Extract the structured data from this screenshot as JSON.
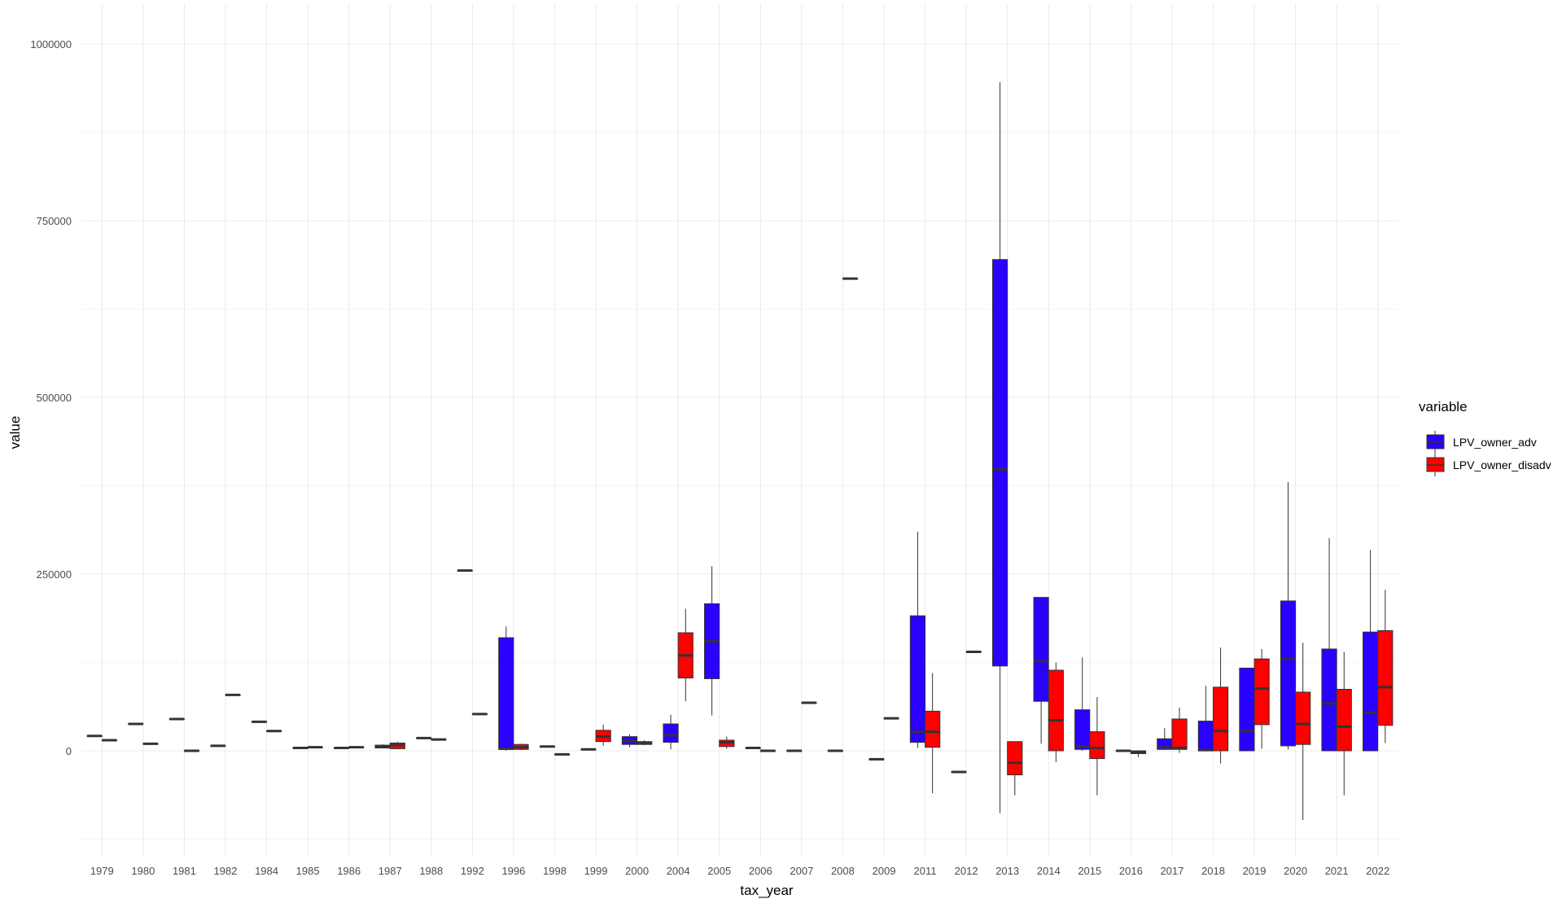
{
  "chart_data": {
    "type": "boxplot",
    "xlabel": "tax_year",
    "ylabel": "value",
    "ylim": [
      -125000,
      1050000
    ],
    "y_ticks": [
      0,
      250000,
      500000,
      750000,
      1000000
    ],
    "y_tick_labels": [
      "0",
      "250000",
      "500000",
      "750000",
      "1000000"
    ],
    "grid": true,
    "legend": {
      "title": "variable",
      "position": "right",
      "entries": [
        {
          "name": "LPV_owner_adv",
          "color": "#2a00ff"
        },
        {
          "name": "LPV_owner_disadv",
          "color": "#ff0000"
        }
      ]
    },
    "categories": [
      "1979",
      "1980",
      "1981",
      "1982",
      "1984",
      "1985",
      "1986",
      "1987",
      "1988",
      "1992",
      "1996",
      "1998",
      "1999",
      "2000",
      "2004",
      "2005",
      "2006",
      "2007",
      "2008",
      "2009",
      "2011",
      "2012",
      "2013",
      "2014",
      "2015",
      "2016",
      "2017",
      "2018",
      "2019",
      "2020",
      "2021",
      "2022"
    ],
    "boxes": [
      {
        "category": "1979",
        "series": "LPV_owner_adv",
        "min": 21000,
        "q1": 21000,
        "median": 21000,
        "q3": 21000,
        "max": 21000
      },
      {
        "category": "1979",
        "series": "LPV_owner_disadv",
        "min": 15000,
        "q1": 15000,
        "median": 15000,
        "q3": 15000,
        "max": 15000
      },
      {
        "category": "1980",
        "series": "LPV_owner_adv",
        "min": 38000,
        "q1": 38000,
        "median": 38000,
        "q3": 38000,
        "max": 38000
      },
      {
        "category": "1980",
        "series": "LPV_owner_disadv",
        "min": 10000,
        "q1": 10000,
        "median": 10000,
        "q3": 10000,
        "max": 10000
      },
      {
        "category": "1981",
        "series": "LPV_owner_adv",
        "min": 45000,
        "q1": 45000,
        "median": 45000,
        "q3": 45000,
        "max": 45000
      },
      {
        "category": "1981",
        "series": "LPV_owner_disadv",
        "min": 0,
        "q1": 0,
        "median": 0,
        "q3": 0,
        "max": 0
      },
      {
        "category": "1982",
        "series": "LPV_owner_adv",
        "min": 7000,
        "q1": 7000,
        "median": 7000,
        "q3": 7000,
        "max": 7000
      },
      {
        "category": "1982",
        "series": "LPV_owner_disadv",
        "min": 79000,
        "q1": 79000,
        "median": 79000,
        "q3": 79000,
        "max": 79000
      },
      {
        "category": "1984",
        "series": "LPV_owner_adv",
        "min": 41000,
        "q1": 41000,
        "median": 41000,
        "q3": 41000,
        "max": 41000
      },
      {
        "category": "1984",
        "series": "LPV_owner_disadv",
        "min": 28000,
        "q1": 28000,
        "median": 28000,
        "q3": 28000,
        "max": 28000
      },
      {
        "category": "1985",
        "series": "LPV_owner_adv",
        "min": 4000,
        "q1": 4000,
        "median": 4000,
        "q3": 4000,
        "max": 4000
      },
      {
        "category": "1985",
        "series": "LPV_owner_disadv",
        "min": 5000,
        "q1": 5000,
        "median": 5000,
        "q3": 5000,
        "max": 5000
      },
      {
        "category": "1986",
        "series": "LPV_owner_adv",
        "min": 4000,
        "q1": 4000,
        "median": 4000,
        "q3": 4000,
        "max": 4000
      },
      {
        "category": "1986",
        "series": "LPV_owner_disadv",
        "min": 5000,
        "q1": 5000,
        "median": 5000,
        "q3": 5000,
        "max": 5000
      },
      {
        "category": "1987",
        "series": "LPV_owner_adv",
        "min": 4000,
        "q1": 4000,
        "median": 6000,
        "q3": 8000,
        "max": 9000
      },
      {
        "category": "1987",
        "series": "LPV_owner_disadv",
        "min": 2000,
        "q1": 3000,
        "median": 8000,
        "q3": 11000,
        "max": 13000
      },
      {
        "category": "1988",
        "series": "LPV_owner_adv",
        "min": 18000,
        "q1": 18000,
        "median": 18000,
        "q3": 18000,
        "max": 18000
      },
      {
        "category": "1988",
        "series": "LPV_owner_disadv",
        "min": 16000,
        "q1": 16000,
        "median": 16000,
        "q3": 16000,
        "max": 16000
      },
      {
        "category": "1992",
        "series": "LPV_owner_adv",
        "min": 255000,
        "q1": 255000,
        "median": 255000,
        "q3": 255000,
        "max": 255000
      },
      {
        "category": "1992",
        "series": "LPV_owner_disadv",
        "min": 52000,
        "q1": 52000,
        "median": 52000,
        "q3": 52000,
        "max": 52000
      },
      {
        "category": "1996",
        "series": "LPV_owner_adv",
        "min": 0,
        "q1": 2000,
        "median": 3000,
        "q3": 160000,
        "max": 176000
      },
      {
        "category": "1996",
        "series": "LPV_owner_disadv",
        "min": 1000,
        "q1": 2000,
        "median": 5000,
        "q3": 9000,
        "max": 10000
      },
      {
        "category": "1998",
        "series": "LPV_owner_adv",
        "min": 6000,
        "q1": 6000,
        "median": 6000,
        "q3": 6000,
        "max": 6000
      },
      {
        "category": "1998",
        "series": "LPV_owner_disadv",
        "min": -5000,
        "q1": -5000,
        "median": -5000,
        "q3": -5000,
        "max": -5000
      },
      {
        "category": "1999",
        "series": "LPV_owner_adv",
        "min": 2000,
        "q1": 2000,
        "median": 2000,
        "q3": 2000,
        "max": 2000
      },
      {
        "category": "1999",
        "series": "LPV_owner_disadv",
        "min": 7000,
        "q1": 13000,
        "median": 20000,
        "q3": 29000,
        "max": 37000
      },
      {
        "category": "2000",
        "series": "LPV_owner_adv",
        "min": 5000,
        "q1": 9000,
        "median": 14000,
        "q3": 20000,
        "max": 23000
      },
      {
        "category": "2000",
        "series": "LPV_owner_disadv",
        "min": 8000,
        "q1": 9000,
        "median": 11000,
        "q3": 13000,
        "max": 15000
      },
      {
        "category": "2004",
        "series": "LPV_owner_adv",
        "min": 2000,
        "q1": 12000,
        "median": 22000,
        "q3": 38000,
        "max": 51000
      },
      {
        "category": "2004",
        "series": "LPV_owner_disadv",
        "min": 70000,
        "q1": 103000,
        "median": 135000,
        "q3": 167000,
        "max": 201000
      },
      {
        "category": "2005",
        "series": "LPV_owner_adv",
        "min": 50000,
        "q1": 102000,
        "median": 155000,
        "q3": 208000,
        "max": 261000
      },
      {
        "category": "2005",
        "series": "LPV_owner_disadv",
        "min": 3000,
        "q1": 6000,
        "median": 12000,
        "q3": 15000,
        "max": 20000
      },
      {
        "category": "2006",
        "series": "LPV_owner_adv",
        "min": 4000,
        "q1": 4000,
        "median": 4000,
        "q3": 4000,
        "max": 4000
      },
      {
        "category": "2006",
        "series": "LPV_owner_disadv",
        "min": 0,
        "q1": 0,
        "median": 0,
        "q3": 0,
        "max": 0
      },
      {
        "category": "2007",
        "series": "LPV_owner_adv",
        "min": 0,
        "q1": 0,
        "median": 0,
        "q3": 0,
        "max": 0
      },
      {
        "category": "2007",
        "series": "LPV_owner_disadv",
        "min": 68000,
        "q1": 68000,
        "median": 68000,
        "q3": 68000,
        "max": 68000
      },
      {
        "category": "2008",
        "series": "LPV_owner_adv",
        "min": 0,
        "q1": 0,
        "median": 0,
        "q3": 0,
        "max": 0
      },
      {
        "category": "2008",
        "series": "LPV_owner_disadv",
        "min": 668000,
        "q1": 668000,
        "median": 668000,
        "q3": 668000,
        "max": 668000
      },
      {
        "category": "2009",
        "series": "LPV_owner_adv",
        "min": -12000,
        "q1": -12000,
        "median": -12000,
        "q3": -12000,
        "max": -12000
      },
      {
        "category": "2009",
        "series": "LPV_owner_disadv",
        "min": 46000,
        "q1": 46000,
        "median": 46000,
        "q3": 46000,
        "max": 46000
      },
      {
        "category": "2011",
        "series": "LPV_owner_adv",
        "min": 4000,
        "q1": 12000,
        "median": 27000,
        "q3": 191000,
        "max": 310000
      },
      {
        "category": "2011",
        "series": "LPV_owner_disadv",
        "min": -60000,
        "q1": 5000,
        "median": 27000,
        "q3": 56000,
        "max": 110000
      },
      {
        "category": "2012",
        "series": "LPV_owner_adv",
        "min": -30000,
        "q1": -30000,
        "median": -30000,
        "q3": -30000,
        "max": -30000
      },
      {
        "category": "2012",
        "series": "LPV_owner_disadv",
        "min": 140000,
        "q1": 140000,
        "median": 140000,
        "q3": 140000,
        "max": 140000
      },
      {
        "category": "2013",
        "series": "LPV_owner_adv",
        "min": -88000,
        "q1": 120000,
        "median": 398000,
        "q3": 695000,
        "max": 946000
      },
      {
        "category": "2013",
        "series": "LPV_owner_disadv",
        "min": -63000,
        "q1": -34000,
        "median": -17000,
        "q3": 13000,
        "max": 13000
      },
      {
        "category": "2014",
        "series": "LPV_owner_adv",
        "min": 10000,
        "q1": 70000,
        "median": 127000,
        "q3": 217000,
        "max": 217000
      },
      {
        "category": "2014",
        "series": "LPV_owner_disadv",
        "min": -16000,
        "q1": 0,
        "median": 43000,
        "q3": 114000,
        "max": 125000
      },
      {
        "category": "2015",
        "series": "LPV_owner_adv",
        "min": 0,
        "q1": 2000,
        "median": 6000,
        "q3": 58000,
        "max": 132000
      },
      {
        "category": "2015",
        "series": "LPV_owner_disadv",
        "min": -63000,
        "q1": -11000,
        "median": 4000,
        "q3": 27000,
        "max": 76000
      },
      {
        "category": "2016",
        "series": "LPV_owner_adv",
        "min": 0,
        "q1": 0,
        "median": 0,
        "q3": 0,
        "max": 0
      },
      {
        "category": "2016",
        "series": "LPV_owner_disadv",
        "min": -9000,
        "q1": -4000,
        "median": -2000,
        "q3": 0,
        "max": 0
      },
      {
        "category": "2017",
        "series": "LPV_owner_adv",
        "min": 1000,
        "q1": 2000,
        "median": 5000,
        "q3": 17000,
        "max": 32000
      },
      {
        "category": "2017",
        "series": "LPV_owner_disadv",
        "min": -3000,
        "q1": 2000,
        "median": 4000,
        "q3": 45000,
        "max": 61000
      },
      {
        "category": "2018",
        "series": "LPV_owner_adv",
        "min": -1000,
        "q1": 0,
        "median": 1000,
        "q3": 42000,
        "max": 92000
      },
      {
        "category": "2018",
        "series": "LPV_owner_disadv",
        "min": -18000,
        "q1": 0,
        "median": 28000,
        "q3": 90000,
        "max": 146000
      },
      {
        "category": "2019",
        "series": "LPV_owner_adv",
        "min": 0,
        "q1": 0,
        "median": 28000,
        "q3": 117000,
        "max": 117000
      },
      {
        "category": "2019",
        "series": "LPV_owner_disadv",
        "min": 3000,
        "q1": 37000,
        "median": 88000,
        "q3": 130000,
        "max": 144000
      },
      {
        "category": "2020",
        "series": "LPV_owner_adv",
        "min": 2000,
        "q1": 7000,
        "median": 130000,
        "q3": 212000,
        "max": 380000
      },
      {
        "category": "2020",
        "series": "LPV_owner_disadv",
        "min": -98000,
        "q1": 9000,
        "median": 38000,
        "q3": 83000,
        "max": 153000
      },
      {
        "category": "2021",
        "series": "LPV_owner_adv",
        "min": 0,
        "q1": 0,
        "median": 67000,
        "q3": 144000,
        "max": 301000
      },
      {
        "category": "2021",
        "series": "LPV_owner_disadv",
        "min": -63000,
        "q1": 0,
        "median": 34000,
        "q3": 87000,
        "max": 140000
      },
      {
        "category": "2022",
        "series": "LPV_owner_adv",
        "min": 0,
        "q1": 0,
        "median": 54000,
        "q3": 168000,
        "max": 284000
      },
      {
        "category": "2022",
        "series": "LPV_owner_disadv",
        "min": 11000,
        "q1": 36000,
        "median": 90000,
        "q3": 170000,
        "max": 228000
      }
    ]
  }
}
